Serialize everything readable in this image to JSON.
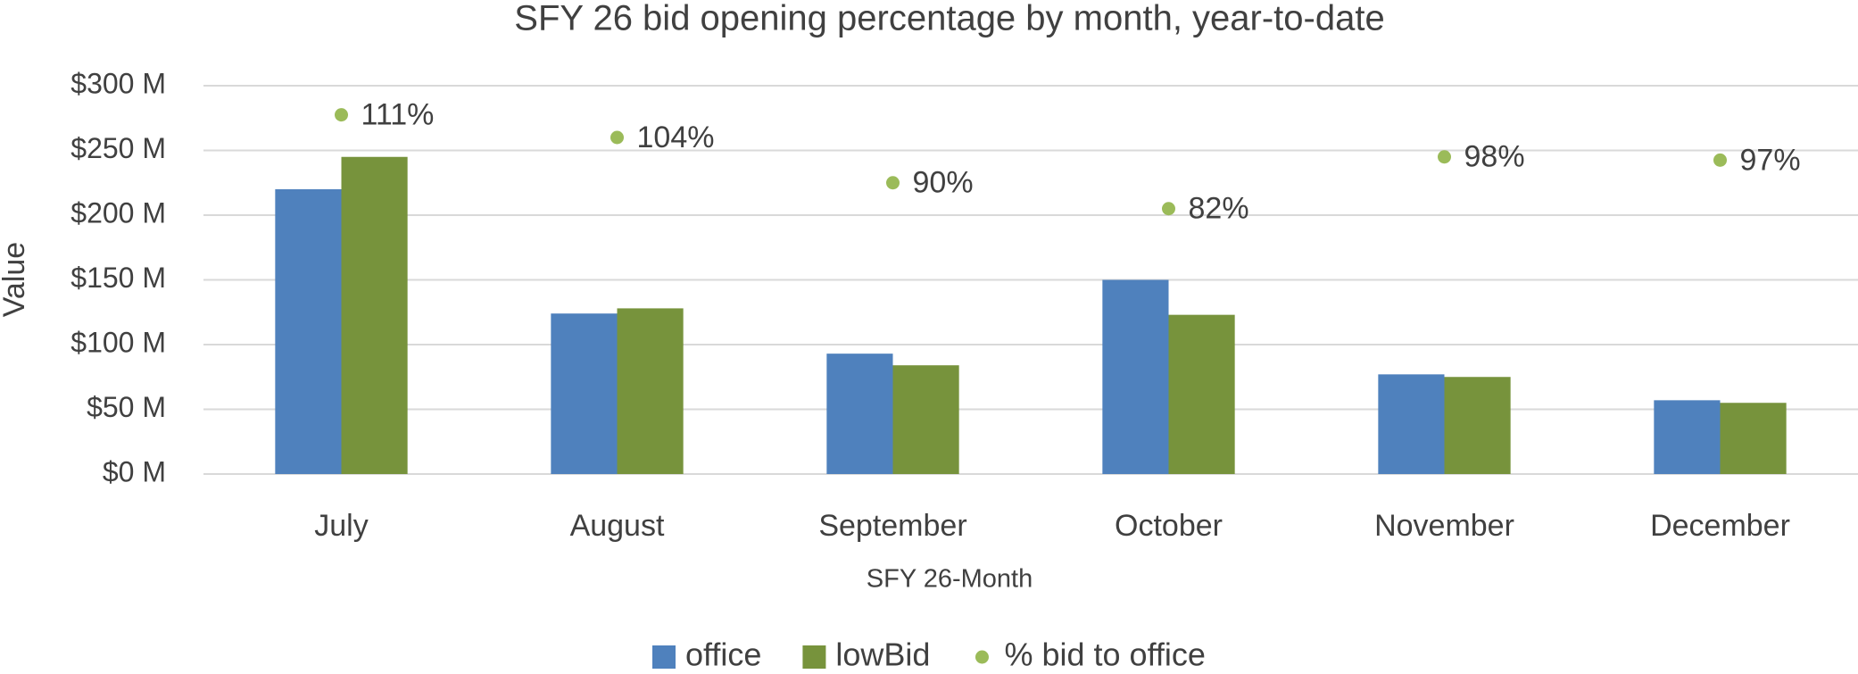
{
  "chart_data": {
    "type": "bar",
    "title": "SFY 26 bid opening percentage by month, year-to-date",
    "x_label": "SFY 26-Month",
    "y_label": "Value",
    "categories": [
      "July",
      "August",
      "September",
      "October",
      "November",
      "December"
    ],
    "series": [
      {
        "name": "office",
        "color": "#4f81bd",
        "values": [
          220,
          124,
          93,
          150,
          77,
          57
        ]
      },
      {
        "name": "lowBid",
        "color": "#77933c",
        "values": [
          245,
          128,
          84,
          123,
          75,
          55
        ]
      },
      {
        "name": "% bid to office",
        "color": "#9bbb59",
        "type": "scatter",
        "axis": "y2",
        "values": [
          111,
          104,
          90,
          82,
          98,
          97
        ],
        "value_labels": [
          "111%",
          "104%",
          "90%",
          "82%",
          "98%",
          "97%"
        ]
      }
    ],
    "ylim": [
      0,
      300
    ],
    "yticks": [
      {
        "value": 0,
        "label": "$0 M"
      },
      {
        "value": 50,
        "label": "$50 M"
      },
      {
        "value": 100,
        "label": "$100 M"
      },
      {
        "value": 150,
        "label": "$150 M"
      },
      {
        "value": 200,
        "label": "$200 M"
      },
      {
        "value": 250,
        "label": "$250 M"
      },
      {
        "value": 300,
        "label": "$300 M"
      }
    ],
    "y2lim": [
      0,
      120
    ],
    "grid": true,
    "legend": "bottom"
  }
}
